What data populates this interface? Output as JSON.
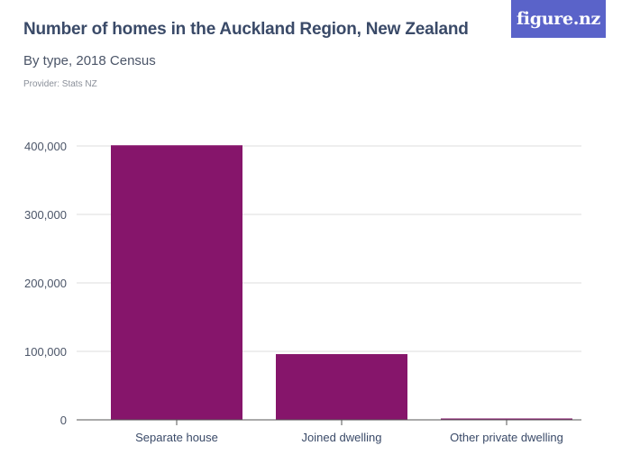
{
  "header": {
    "title": "Number of homes in the Auckland Region, New Zealand",
    "subtitle": "By type, 2018 Census",
    "provider": "Provider: Stats NZ"
  },
  "logo": {
    "text": "figure.nz",
    "color": "#5a63c9"
  },
  "colors": {
    "bar": "#86156b",
    "grid": "#dddddd",
    "axis": "#555555"
  },
  "chart_data": {
    "type": "bar",
    "categories": [
      "Separate house",
      "Joined dwelling",
      "Other private dwelling"
    ],
    "values": [
      401000,
      96000,
      2000
    ],
    "title": "Number of homes in the Auckland Region, New Zealand",
    "subtitle": "By type, 2018 Census",
    "xlabel": "",
    "ylabel": "",
    "ylim": [
      0,
      400000
    ],
    "yticks": [
      0,
      100000,
      200000,
      300000,
      400000
    ],
    "ytick_labels": [
      "0",
      "100,000",
      "200,000",
      "300,000",
      "400,000"
    ],
    "grid": true,
    "legend": "none"
  }
}
